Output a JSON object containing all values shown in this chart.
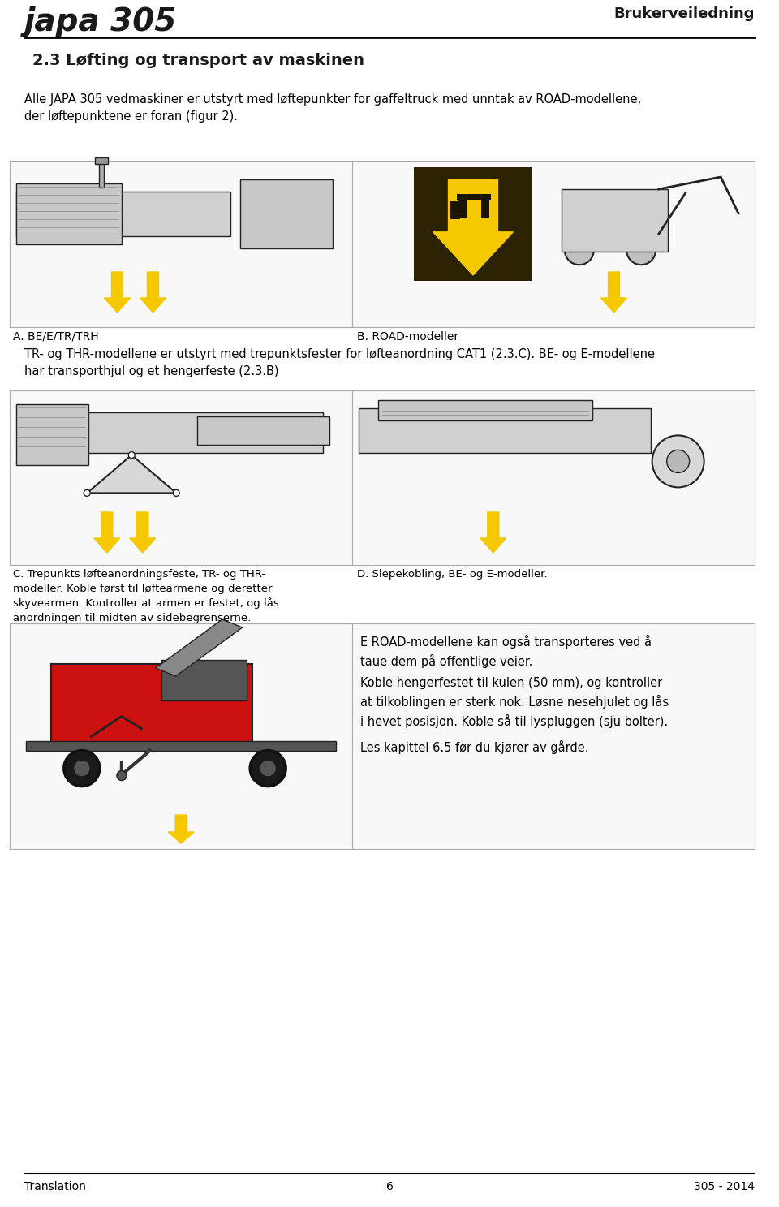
{
  "page_bg": "#ffffff",
  "header_line_color": "#000000",
  "header_title": "japa 305",
  "header_right": "Brukerveiledning",
  "footer_left": "Translation",
  "footer_center": "6",
  "footer_right": "305 - 2014",
  "section_title": "2.3 Løfting og transport av maskinen",
  "intro_text": "Alle JAPA 305 vedmaskiner er utstyrt med løftepunkter for gaffeltruck med unntak av ROAD-modellene,\nder løftepunktene er foran (figur 2).",
  "label_A": "A. BE/E/TR/TRH",
  "label_B": "B. ROAD-modeller",
  "middle_text": "TR- og THR-modellene er utstyrt med trepunktsfester for løfteanordning CAT1 (2.3.C). BE- og E-modellene\nhar transporthjul og et hengerfeste (2.3.B)",
  "label_C": "C. Trepunkts løfteanordningsfeste, TR- og THR-\nmodeller. Koble først til løftearmene og deretter\nskyvearmen. Kontroller at armen er festet, og lås\nanordningen til midten av sidebegrenserne.",
  "label_D": "D. Slepekobling, BE- og E-modeller.",
  "bottom_right_text1": "E ROAD-modellene kan også transporteres ved å\ntaue dem på offentlige veier.",
  "bottom_right_text2": "Koble hengerfestet til kulen (50 mm), og kontroller\nat tilkoblingen er sterk nok. Løsne nesehjulet og lås\ni hevet posisjon. Koble så til lyspluggen (sju bolter).",
  "bottom_right_text3": "Les kapittel 6.5 før du kjører av gårde.",
  "yellow_color": "#F5C800",
  "dark_yellow": "#3a2e00",
  "black_color": "#1a1a1a",
  "text_color": "#000000",
  "box_edge_color": "#aaaaaa",
  "box_fill_color": "#f8f8f8",
  "divider_color": "#aaaaaa",
  "machine_fill": "#e8e8e8",
  "machine_edge": "#222222"
}
